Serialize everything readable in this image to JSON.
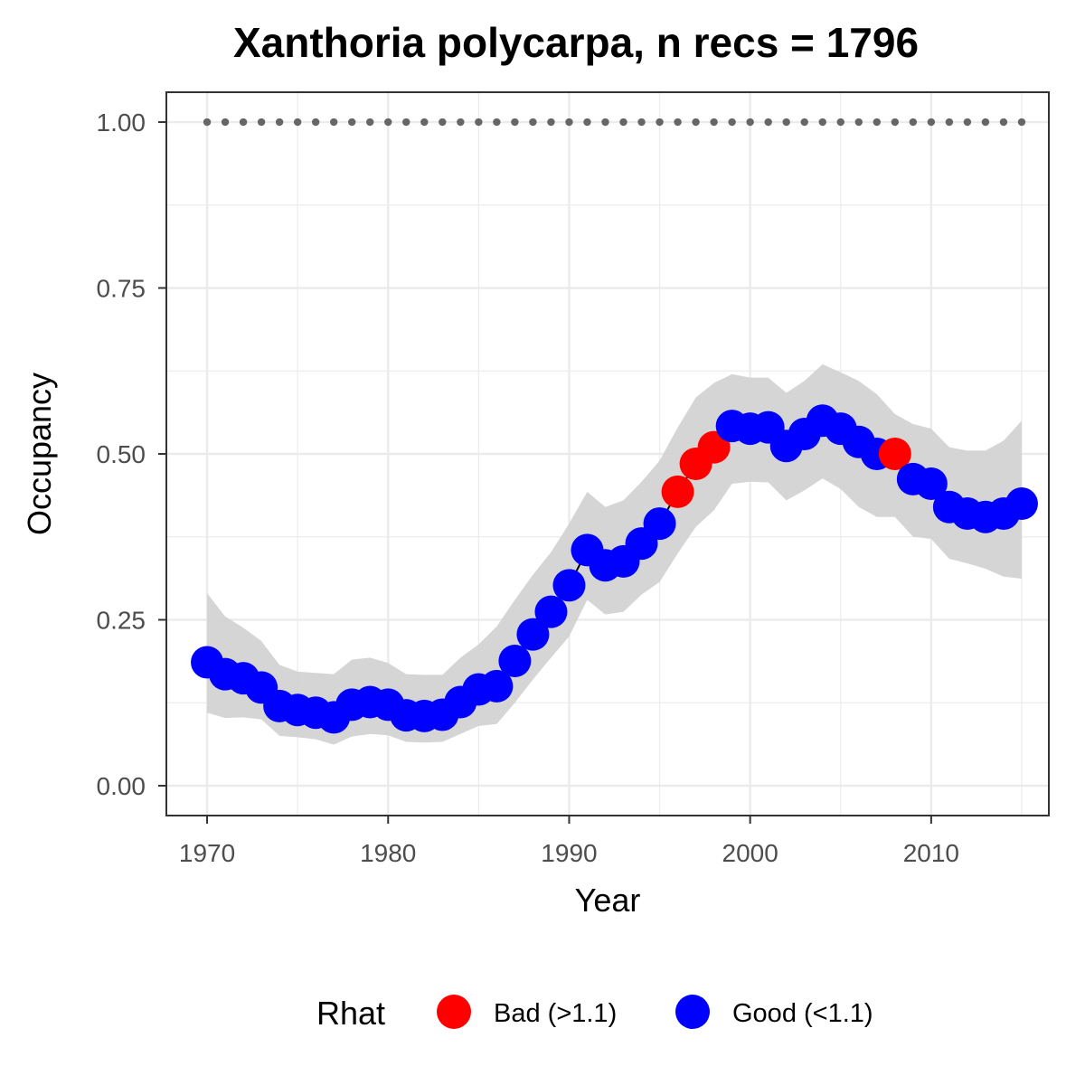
{
  "chart_data": {
    "type": "scatter",
    "title": "Xanthoria polycarpa, n recs = 1796",
    "xlabel": "Year",
    "ylabel": "Occupancy",
    "xlim": [
      1967.9,
      1976.5
    ],
    "ylim": [
      -0.045,
      1.045
    ],
    "x_ticks": [
      1970,
      1980,
      1990,
      2000,
      2010
    ],
    "y_ticks": [
      0.0,
      0.25,
      0.5,
      0.75,
      1.0
    ],
    "y_tick_labels": [
      "0.00",
      "0.25",
      "0.50",
      "0.75",
      "1.00"
    ],
    "grid": true,
    "legend": {
      "title": "Rhat",
      "position": "bottom",
      "entries": [
        {
          "label": "Bad (>1.1)",
          "color": "#ff0000"
        },
        {
          "label": "Good (<1.1)",
          "color": "#0000ff"
        }
      ]
    },
    "colors": {
      "bad": "#ff0000",
      "good": "#0000ff",
      "ribbon": "#d3d3d3",
      "reference": "#666666"
    },
    "reference_line": {
      "y": 1.0,
      "style": "dotted"
    },
    "series": [
      {
        "year": 1970,
        "mean": 0.186,
        "lower": 0.11,
        "upper": 0.29,
        "rhat": "good"
      },
      {
        "year": 1971,
        "mean": 0.168,
        "lower": 0.102,
        "upper": 0.255,
        "rhat": "good"
      },
      {
        "year": 1972,
        "mean": 0.162,
        "lower": 0.103,
        "upper": 0.238,
        "rhat": "good"
      },
      {
        "year": 1973,
        "mean": 0.148,
        "lower": 0.1,
        "upper": 0.218,
        "rhat": "good"
      },
      {
        "year": 1974,
        "mean": 0.12,
        "lower": 0.075,
        "upper": 0.182,
        "rhat": "good"
      },
      {
        "year": 1975,
        "mean": 0.114,
        "lower": 0.073,
        "upper": 0.172,
        "rhat": "good"
      },
      {
        "year": 1976,
        "mean": 0.11,
        "lower": 0.07,
        "upper": 0.17,
        "rhat": "good"
      },
      {
        "year": 1977,
        "mean": 0.103,
        "lower": 0.062,
        "upper": 0.168,
        "rhat": "good"
      },
      {
        "year": 1978,
        "mean": 0.122,
        "lower": 0.074,
        "upper": 0.19,
        "rhat": "good"
      },
      {
        "year": 1979,
        "mean": 0.126,
        "lower": 0.078,
        "upper": 0.193,
        "rhat": "good"
      },
      {
        "year": 1980,
        "mean": 0.122,
        "lower": 0.076,
        "upper": 0.185,
        "rhat": "good"
      },
      {
        "year": 1981,
        "mean": 0.106,
        "lower": 0.066,
        "upper": 0.168,
        "rhat": "good"
      },
      {
        "year": 1982,
        "mean": 0.105,
        "lower": 0.065,
        "upper": 0.167,
        "rhat": "good"
      },
      {
        "year": 1983,
        "mean": 0.107,
        "lower": 0.066,
        "upper": 0.167,
        "rhat": "good"
      },
      {
        "year": 1984,
        "mean": 0.126,
        "lower": 0.078,
        "upper": 0.193,
        "rhat": "good"
      },
      {
        "year": 1985,
        "mean": 0.145,
        "lower": 0.09,
        "upper": 0.213,
        "rhat": "good"
      },
      {
        "year": 1986,
        "mean": 0.15,
        "lower": 0.093,
        "upper": 0.24,
        "rhat": "good"
      },
      {
        "year": 1987,
        "mean": 0.188,
        "lower": 0.125,
        "upper": 0.28,
        "rhat": "good"
      },
      {
        "year": 1988,
        "mean": 0.228,
        "lower": 0.16,
        "upper": 0.318,
        "rhat": "good"
      },
      {
        "year": 1989,
        "mean": 0.262,
        "lower": 0.193,
        "upper": 0.352,
        "rhat": "good"
      },
      {
        "year": 1990,
        "mean": 0.302,
        "lower": 0.225,
        "upper": 0.395,
        "rhat": "good"
      },
      {
        "year": 1991,
        "mean": 0.355,
        "lower": 0.28,
        "upper": 0.443,
        "rhat": "good"
      },
      {
        "year": 1992,
        "mean": 0.332,
        "lower": 0.258,
        "upper": 0.42,
        "rhat": "good"
      },
      {
        "year": 1993,
        "mean": 0.338,
        "lower": 0.262,
        "upper": 0.43,
        "rhat": "good"
      },
      {
        "year": 1994,
        "mean": 0.365,
        "lower": 0.288,
        "upper": 0.458,
        "rhat": "good"
      },
      {
        "year": 1995,
        "mean": 0.395,
        "lower": 0.307,
        "upper": 0.49,
        "rhat": "good"
      },
      {
        "year": 1996,
        "mean": 0.443,
        "lower": 0.35,
        "upper": 0.54,
        "rhat": "bad"
      },
      {
        "year": 1997,
        "mean": 0.485,
        "lower": 0.39,
        "upper": 0.585,
        "rhat": "bad"
      },
      {
        "year": 1998,
        "mean": 0.51,
        "lower": 0.415,
        "upper": 0.607,
        "rhat": "bad"
      },
      {
        "year": 1999,
        "mean": 0.542,
        "lower": 0.455,
        "upper": 0.62,
        "rhat": "good"
      },
      {
        "year": 2000,
        "mean": 0.538,
        "lower": 0.458,
        "upper": 0.615,
        "rhat": "good"
      },
      {
        "year": 2001,
        "mean": 0.54,
        "lower": 0.457,
        "upper": 0.615,
        "rhat": "good"
      },
      {
        "year": 2002,
        "mean": 0.512,
        "lower": 0.43,
        "upper": 0.592,
        "rhat": "good"
      },
      {
        "year": 2003,
        "mean": 0.53,
        "lower": 0.445,
        "upper": 0.61,
        "rhat": "good"
      },
      {
        "year": 2004,
        "mean": 0.55,
        "lower": 0.463,
        "upper": 0.635,
        "rhat": "good"
      },
      {
        "year": 2005,
        "mean": 0.538,
        "lower": 0.447,
        "upper": 0.623,
        "rhat": "good"
      },
      {
        "year": 2006,
        "mean": 0.518,
        "lower": 0.42,
        "upper": 0.61,
        "rhat": "good"
      },
      {
        "year": 2007,
        "mean": 0.5,
        "lower": 0.405,
        "upper": 0.59,
        "rhat": "good"
      },
      {
        "year": 2008,
        "mean": 0.5,
        "lower": 0.405,
        "upper": 0.56,
        "rhat": "bad"
      },
      {
        "year": 2009,
        "mean": 0.462,
        "lower": 0.375,
        "upper": 0.545,
        "rhat": "good"
      },
      {
        "year": 2010,
        "mean": 0.455,
        "lower": 0.372,
        "upper": 0.538,
        "rhat": "good"
      },
      {
        "year": 2011,
        "mean": 0.42,
        "lower": 0.342,
        "upper": 0.51,
        "rhat": "good"
      },
      {
        "year": 2012,
        "mean": 0.41,
        "lower": 0.335,
        "upper": 0.505,
        "rhat": "good"
      },
      {
        "year": 2013,
        "mean": 0.405,
        "lower": 0.327,
        "upper": 0.505,
        "rhat": "good"
      },
      {
        "year": 2014,
        "mean": 0.41,
        "lower": 0.315,
        "upper": 0.52,
        "rhat": "good"
      },
      {
        "year": 2015,
        "mean": 0.425,
        "lower": 0.312,
        "upper": 0.55,
        "rhat": "good"
      }
    ]
  }
}
